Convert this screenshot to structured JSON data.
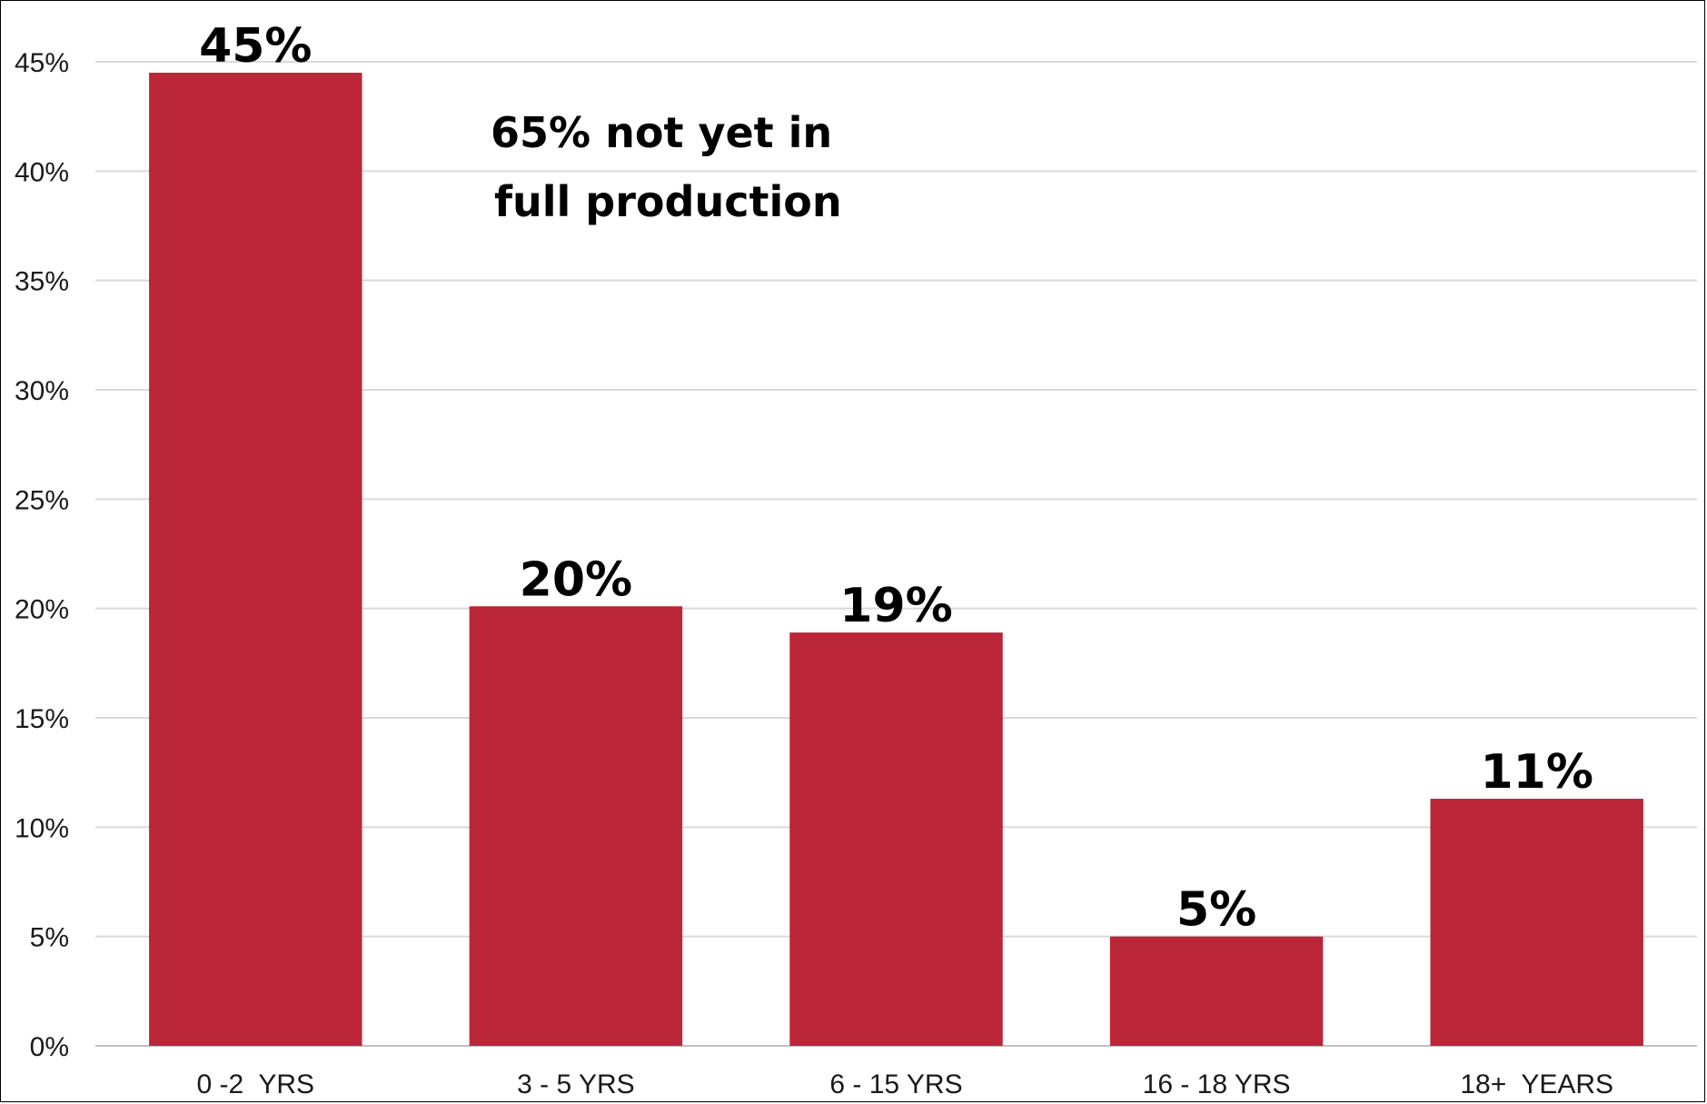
{
  "chart_data": {
    "type": "bar",
    "categories": [
      "0 -2  YRS",
      "3 - 5 YRS",
      "6 - 15 YRS",
      "16 - 18 YRS",
      "18+  YEARS"
    ],
    "values": [
      44.5,
      20.1,
      18.9,
      5.0,
      11.3
    ],
    "data_labels": [
      "45%",
      "20%",
      "19%",
      "5%",
      "11%"
    ],
    "ylim": [
      0,
      45
    ],
    "yticks": [
      "0%",
      "5%",
      "10%",
      "15%",
      "20%",
      "25%",
      "30%",
      "35%",
      "40%",
      "45%"
    ],
    "bar_color": "#bb2639",
    "grid": true,
    "annotation": {
      "line1": "65% not yet in",
      "line2": "full production"
    }
  }
}
